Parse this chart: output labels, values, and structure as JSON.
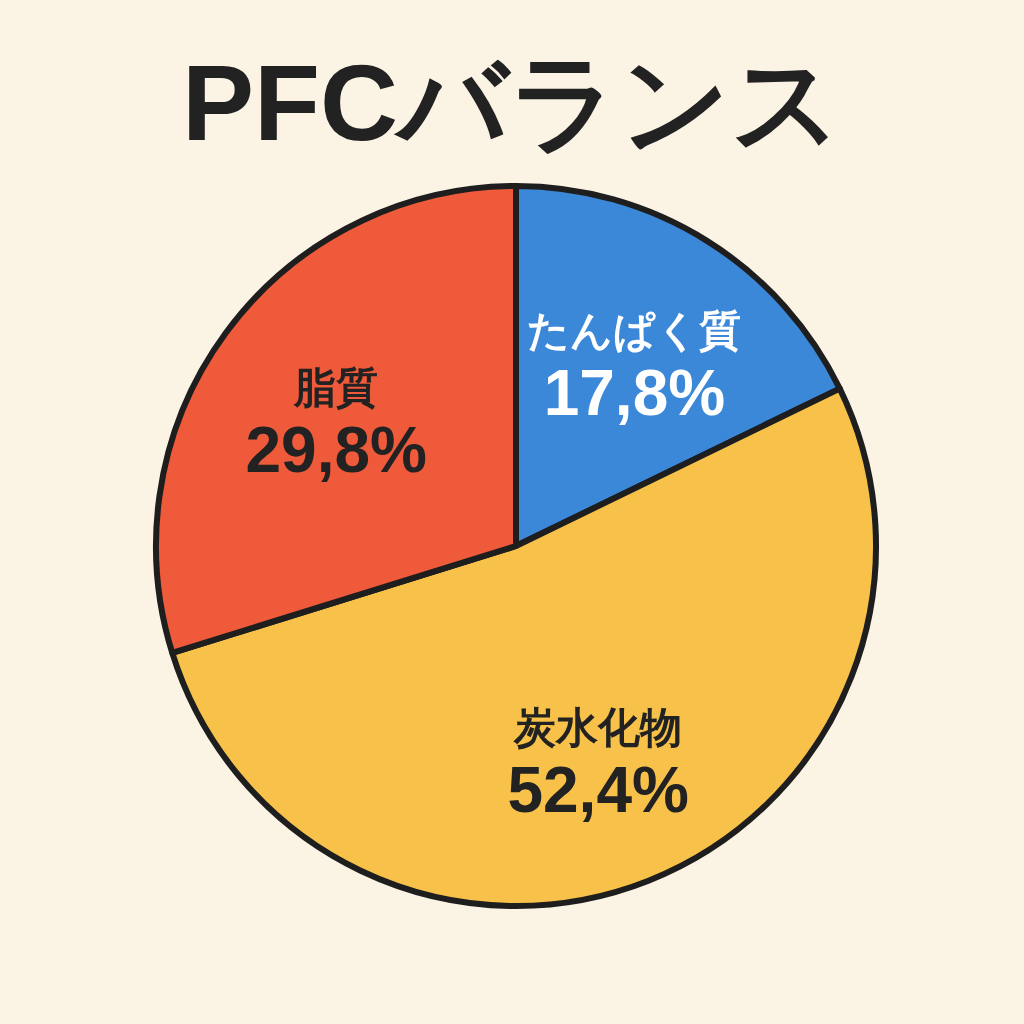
{
  "chart_data": {
    "type": "pie",
    "title": "PFCバランス",
    "categories": [
      "たんぱく質",
      "炭水化物",
      "脂質"
    ],
    "values": [
      17.8,
      52.4,
      29.8
    ],
    "value_labels": [
      "17,8%",
      "52,4%",
      "29,8%"
    ],
    "colors": [
      "#3b87d8",
      "#f8c24a",
      "#ef5a3a"
    ]
  }
}
